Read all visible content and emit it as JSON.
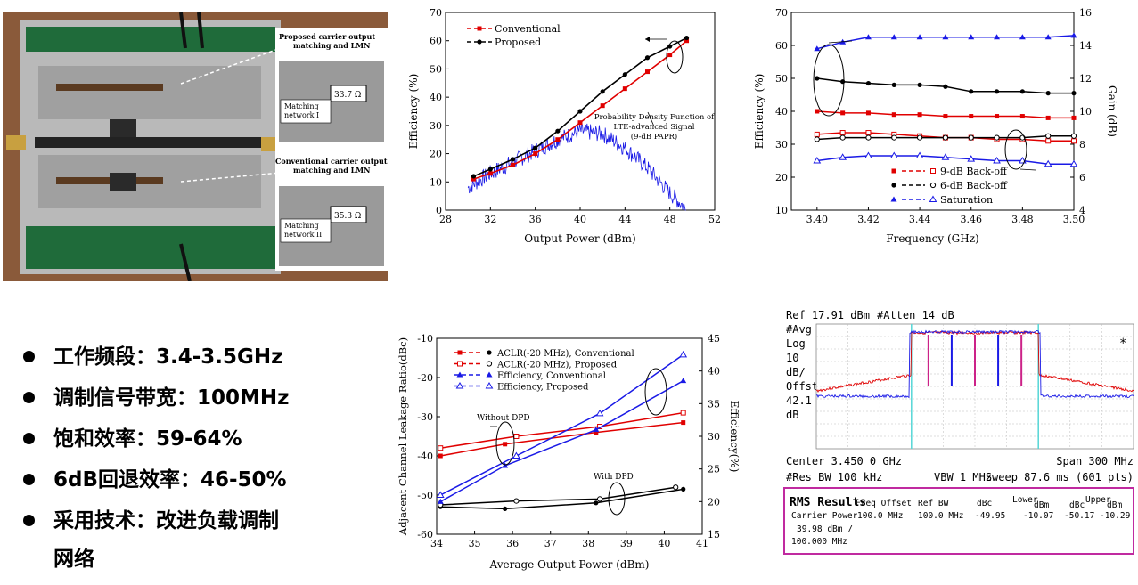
{
  "photo": {
    "label_proposed": [
      "Proposed carrier output",
      "matching and LMN"
    ],
    "label_conventional": [
      "Conventional carrier output",
      "matching and LMN"
    ],
    "matching_1": [
      "Matching",
      "network I"
    ],
    "matching_2": [
      "Matching",
      "network II"
    ],
    "impedance_1": "33.7 Ω",
    "impedance_2": "35.3 Ω"
  },
  "bullets": [
    "工作频段：3.4-3.5GHz",
    "调制信号带宽：100MHz",
    "饱和效率：59-64%",
    "6dB回退效率：46-50%",
    "采用技术：改进负载调制",
    "网络"
  ],
  "chart_data": [
    {
      "type": "line",
      "xlabel": "Output Power (dBm)",
      "ylabel": "Efficiency (%)",
      "xlim": [
        28,
        52
      ],
      "ylim": [
        0,
        70
      ],
      "xticks": [
        "28",
        "32",
        "36",
        "40",
        "44",
        "48",
        "52"
      ],
      "yticks": [
        "0",
        "10",
        "20",
        "30",
        "40",
        "50",
        "60",
        "70"
      ],
      "annotation": [
        "Probability Density Function of",
        "LTE-advanced Signal",
        "(9-dB PAPR)"
      ],
      "legend_position": "top-left",
      "colors": {
        "conventional": "#e00000",
        "proposed": "#000000",
        "pdf": "#1a1ae6"
      },
      "series": [
        {
          "name": "Conventional",
          "x": [
            30.5,
            32,
            34,
            36,
            38,
            40,
            42,
            44,
            46,
            48,
            49.5
          ],
          "y": [
            11,
            13,
            16,
            20,
            25,
            31,
            37,
            43,
            49,
            55,
            60
          ]
        },
        {
          "name": "Proposed",
          "x": [
            30.5,
            32,
            34,
            36,
            38,
            40,
            42,
            44,
            46,
            48,
            49.5
          ],
          "y": [
            12,
            14.5,
            18,
            22,
            28,
            35,
            42,
            48,
            54,
            58,
            61
          ]
        }
      ],
      "pdf_envelope": {
        "x": [
          30,
          32,
          34,
          36,
          38,
          40,
          42,
          44,
          46,
          48,
          49.5
        ],
        "y": [
          8,
          13,
          17,
          21,
          25,
          28,
          27,
          22,
          15,
          6,
          0.5
        ]
      }
    },
    {
      "type": "line",
      "xlabel": "Frequency (GHz)",
      "ylabel": "Efficiency (%)",
      "y2label": "Gain (dB)",
      "xlim": [
        3.39,
        3.5
      ],
      "ylim": [
        10,
        70
      ],
      "y2lim": [
        4,
        16
      ],
      "xticks": [
        "3.40",
        "3.42",
        "3.44",
        "3.46",
        "3.48",
        "3.50"
      ],
      "yticks": [
        "10",
        "20",
        "30",
        "40",
        "50",
        "60",
        "70"
      ],
      "y2ticks": [
        "4",
        "6",
        "8",
        "10",
        "12",
        "14",
        "16"
      ],
      "legend_position": "bottom-right",
      "x": [
        3.4,
        3.41,
        3.42,
        3.43,
        3.44,
        3.45,
        3.46,
        3.47,
        3.48,
        3.49,
        3.5
      ],
      "series": [
        {
          "name": "9-dB Back-off",
          "style": "conv",
          "axis": "left",
          "y": [
            40,
            39.5,
            39.5,
            39,
            39,
            38.5,
            38.5,
            38.5,
            38.5,
            38,
            38
          ]
        },
        {
          "name": "6-dB Back-off",
          "style": "prop",
          "axis": "left",
          "y": [
            50,
            49,
            48.5,
            48,
            48,
            47.5,
            46,
            46,
            46,
            45.5,
            45.5
          ]
        },
        {
          "name": "Saturation",
          "style": "sat",
          "axis": "left",
          "y": [
            59,
            61,
            62.5,
            62.5,
            62.5,
            62.5,
            62.5,
            62.5,
            62.5,
            62.5,
            63
          ]
        },
        {
          "name": "",
          "style": "conv-gain",
          "axis": "right",
          "y": [
            8.6,
            8.7,
            8.7,
            8.6,
            8.5,
            8.4,
            8.4,
            8.3,
            8.3,
            8.2,
            8.2
          ]
        },
        {
          "name": "",
          "style": "prop-gain",
          "axis": "right",
          "y": [
            8.3,
            8.4,
            8.4,
            8.4,
            8.4,
            8.4,
            8.4,
            8.4,
            8.4,
            8.5,
            8.5
          ]
        },
        {
          "name": "",
          "style": "sat-gain",
          "axis": "right",
          "y": [
            7,
            7.2,
            7.3,
            7.3,
            7.3,
            7.2,
            7.1,
            7,
            7,
            6.8,
            6.8
          ]
        }
      ]
    },
    {
      "type": "line",
      "xlabel": "Average Output Power (dBm)",
      "ylabel": "Adjacent Channel Leakage Ratio(dBc)",
      "y2label": "Efficiency(%)",
      "xlim": [
        34,
        41
      ],
      "ylim": [
        -60,
        -10
      ],
      "y2lim": [
        15,
        45
      ],
      "xticks": [
        "34",
        "35",
        "36",
        "37",
        "38",
        "39",
        "40",
        "41"
      ],
      "yticks": [
        "-10",
        "-20",
        "-30",
        "-40",
        "-50",
        "-60"
      ],
      "y2ticks": [
        "45",
        "40",
        "35",
        "30",
        "25",
        "20",
        "15"
      ],
      "annotations": [
        "Without DPD",
        "With DPD"
      ],
      "legend_position": "top-left",
      "series": [
        {
          "name": "ACLR(-20 MHz), Conventional",
          "style": "conv",
          "axis": "left",
          "x": [
            34.1,
            35.8,
            38.2,
            40.5
          ],
          "y": [
            -40,
            -37,
            -34,
            -31.5
          ]
        },
        {
          "name": "ACLR(-20 MHz), Proposed",
          "style": "convopen",
          "axis": "left",
          "x": [
            34.1,
            36.1,
            38.3,
            40.5
          ],
          "y": [
            -38,
            -35,
            -32.5,
            -29
          ]
        },
        {
          "name": "",
          "style": "prop",
          "axis": "left",
          "x": [
            34.1,
            35.8,
            38.2,
            40.5
          ],
          "y": [
            -53,
            -53.5,
            -52,
            -48.5
          ]
        },
        {
          "name": "",
          "style": "propopen",
          "axis": "left",
          "x": [
            34.1,
            36.1,
            38.3,
            40.3
          ],
          "y": [
            -52.5,
            -51.5,
            -51,
            -48
          ]
        },
        {
          "name": "Efficiency, Conventional",
          "style": "blue",
          "axis": "right",
          "x": [
            34.1,
            35.8,
            38.2,
            40.5
          ],
          "y": [
            20,
            25.5,
            31,
            38.5
          ]
        },
        {
          "name": "Efficiency, Proposed",
          "style": "blueopen",
          "axis": "right",
          "x": [
            34.1,
            36.1,
            38.3,
            40.5
          ],
          "y": [
            21,
            27,
            33.5,
            42.5
          ]
        }
      ]
    },
    {
      "type": "line",
      "title": "",
      "header": {
        "ref": "Ref 17.91 dBm",
        "atten": "#Atten 14 dB",
        "left": [
          "#Avg",
          "Log",
          "10",
          "dB/",
          "Offst",
          "42.1",
          "dB"
        ],
        "star": "*"
      },
      "footer": {
        "center": "Center 3.450 0 GHz",
        "span": "Span 300 MHz",
        "rbw": "#Res BW 100 kHz",
        "vbw": "VBW 1 MHz",
        "sweep": "Sweep 87.6 ms (601 pts)"
      },
      "rms": {
        "title": "RMS Results",
        "cols": [
          "Freq Offset",
          "Ref BW",
          "dBc",
          "Lower",
          "dBm",
          "dBc",
          "Upper",
          "dBm"
        ],
        "row": [
          "Carrier Power",
          "100.0 MHz",
          "100.0 MHz",
          "-49.95",
          "-10.07",
          "-50.17",
          "-10.29"
        ],
        "extra": [
          "39.98 dBm /",
          "100.000 MHz"
        ]
      },
      "colors": {
        "with": "#1a1ae6",
        "without": "#e00000",
        "marker": "#55d6d6"
      }
    }
  ]
}
